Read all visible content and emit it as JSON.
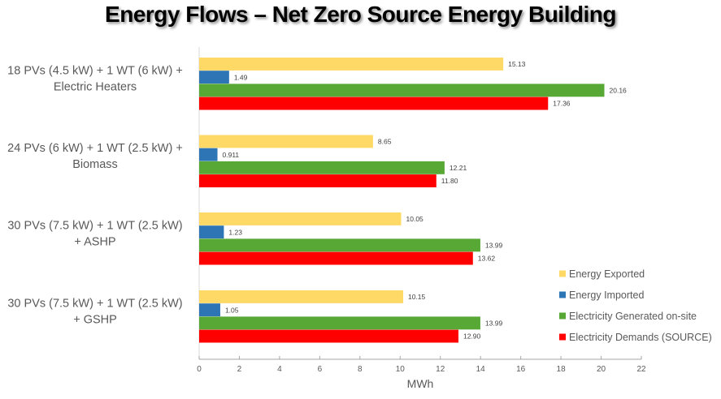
{
  "chart_data": {
    "type": "bar",
    "orientation": "horizontal",
    "title": "Energy Flows – Net Zero Source Energy Building",
    "xlabel": "MWh",
    "ylabel": "",
    "xlim": [
      0,
      22
    ],
    "xticks": [
      0,
      2,
      4,
      6,
      8,
      10,
      12,
      14,
      16,
      18,
      20,
      22
    ],
    "grid": false,
    "legend_position": "bottom-right",
    "categories": [
      [
        "18 PVs (4.5 kW) + 1 WT (6 kW) +",
        "Electric Heaters"
      ],
      [
        "24 PVs (6 kW) + 1 WT (2.5 kW)  +",
        "Biomass"
      ],
      [
        "30 PVs (7.5 kW) + 1 WT (2.5 kW)",
        "+ ASHP"
      ],
      [
        "30 PVs (7.5 kW) + 1 WT (2.5 kW)",
        "+ GSHP"
      ]
    ],
    "series": [
      {
        "name": "Energy Exported",
        "color": "#FFD966",
        "values": [
          15.13,
          8.65,
          10.05,
          10.15
        ],
        "labels": [
          "15.13",
          "8.65",
          "10.05",
          "10.15"
        ]
      },
      {
        "name": "Energy Imported",
        "color": "#2E75B6",
        "values": [
          1.49,
          0.911,
          1.23,
          1.05
        ],
        "labels": [
          "1.49",
          "0.911",
          "1.23",
          "1.05"
        ]
      },
      {
        "name": "Electricity Generated on-site",
        "color": "#57A835",
        "values": [
          20.16,
          12.21,
          13.99,
          13.99
        ],
        "labels": [
          "20.16",
          "12.21",
          "13.99",
          "13.99"
        ]
      },
      {
        "name": "Electricity Demands (SOURCE)",
        "color": "#FF0000",
        "values": [
          17.36,
          11.8,
          13.62,
          12.9
        ],
        "labels": [
          "17.36",
          "11.80",
          "13.62",
          "12.90"
        ]
      }
    ]
  }
}
